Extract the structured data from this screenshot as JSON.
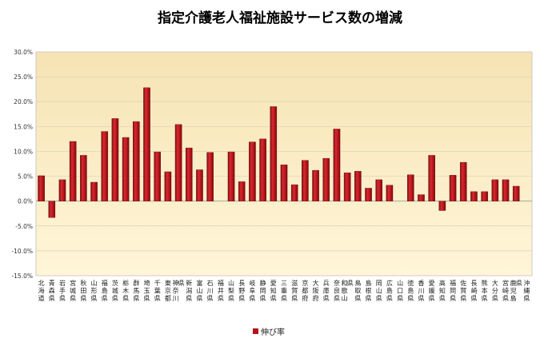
{
  "chart_data": {
    "type": "bar",
    "title": "指定介護老人福祉施設サービス数の増減",
    "xlabel": "",
    "ylabel": "",
    "ylim": [
      -15,
      30
    ],
    "ytick_step": 5,
    "ytick_labels": [
      "30.0%",
      "25.0%",
      "20.0%",
      "15.0%",
      "10.0%",
      "5.0%",
      "0.0%",
      "-5.0%",
      "-10.0%",
      "-15.0%"
    ],
    "grid": true,
    "legend_position": "bottom",
    "categories": [
      "北海道",
      "青森県",
      "岩手県",
      "宮城県",
      "秋田県",
      "山形県",
      "福島県",
      "茨城県",
      "栃木県",
      "群馬県",
      "埼玉県",
      "千葉県",
      "東京都",
      "神奈川県",
      "新潟県",
      "富山県",
      "石川県",
      "福井県",
      "山梨県",
      "長野県",
      "岐阜県",
      "静岡県",
      "愛知県",
      "三重県",
      "滋賀県",
      "京都府",
      "大阪府",
      "兵庫県",
      "奈良県",
      "和歌山県",
      "鳥取県",
      "島根県",
      "岡山県",
      "広島県",
      "山口県",
      "徳島県",
      "香川県",
      "愛媛県",
      "高知県",
      "福岡県",
      "佐賀県",
      "長崎県",
      "熊本県",
      "大分県",
      "宮崎県",
      "鹿児島県",
      "沖縄県"
    ],
    "series": [
      {
        "name": "伸び率",
        "color": "#b5121b",
        "values": [
          5.1,
          -3.3,
          4.3,
          12.0,
          9.2,
          3.8,
          14.0,
          16.6,
          12.8,
          16.0,
          22.8,
          9.9,
          5.9,
          15.4,
          10.7,
          6.3,
          9.8,
          0.0,
          9.9,
          3.9,
          11.9,
          12.5,
          19.0,
          7.3,
          3.3,
          8.2,
          6.2,
          8.6,
          14.5,
          5.7,
          6.0,
          2.6,
          4.3,
          3.2,
          0.0,
          5.3,
          1.3,
          9.2,
          -1.9,
          5.2,
          7.8,
          1.9,
          1.9,
          4.3,
          4.3,
          3.0,
          0.0
        ]
      }
    ]
  }
}
